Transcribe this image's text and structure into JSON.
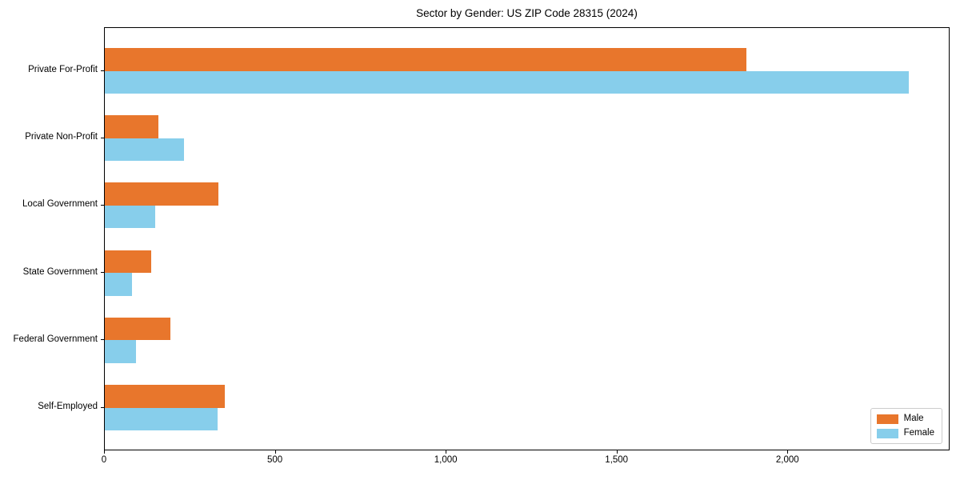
{
  "chart_data": {
    "type": "bar",
    "orientation": "horizontal",
    "title": "Sector by Gender: US ZIP Code 28315 (2024)",
    "categories": [
      "Private For-Profit",
      "Private Non-Profit",
      "Local Government",
      "State Government",
      "Federal Government",
      "Self-Employed"
    ],
    "categories_order": "top-to-bottom",
    "series": [
      {
        "name": "Male",
        "color": "#e8762c",
        "values": [
          1877,
          158,
          332,
          136,
          191,
          351
        ]
      },
      {
        "name": "Female",
        "color": "#87ceeb",
        "values": [
          2352,
          231,
          147,
          80,
          91,
          329
        ]
      }
    ],
    "xlabel": "",
    "ylabel": "",
    "xlim": [
      0,
      2470
    ],
    "xticks": [
      0,
      500,
      1000,
      1500,
      2000
    ],
    "xtick_labels": [
      "0",
      "500",
      "1,000",
      "1,500",
      "2,000"
    ],
    "grid": false,
    "legend": {
      "position": "lower right",
      "entries": [
        "Male",
        "Female"
      ]
    }
  },
  "frame": {
    "background": "#ffffff",
    "plot_border_color": "#000000",
    "text_color": "#000000"
  }
}
